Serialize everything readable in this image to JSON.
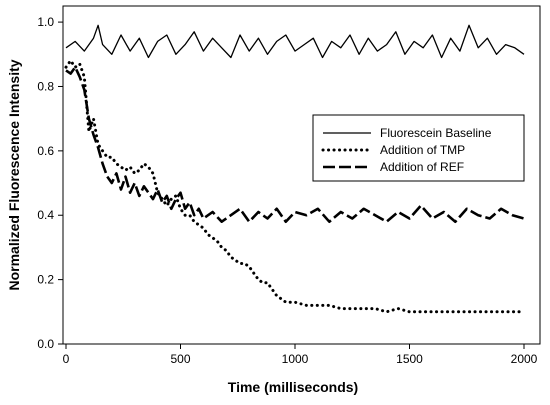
{
  "chart_data": {
    "type": "line",
    "title": "",
    "xlabel": "Time (milliseconds)",
    "ylabel": "Normalized Fluorescence Intensity",
    "xlim": [
      0,
      2000
    ],
    "ylim": [
      0,
      1.05
    ],
    "xticks": [
      0,
      500,
      1000,
      1500,
      2000
    ],
    "yticks": [
      0.0,
      0.2,
      0.4,
      0.6,
      0.8,
      1.0
    ],
    "xtick_labels": [
      "0",
      "500",
      "1000",
      "1500",
      "2000"
    ],
    "ytick_labels": [
      "0.0",
      "0.2",
      "0.4",
      "0.6",
      "0.8",
      "1.0"
    ],
    "grid": false,
    "legend_position": "center-right",
    "series": [
      {
        "name": "Fluorescein Baseline",
        "style": "solid",
        "color": "#000000",
        "x": [
          0,
          40,
          80,
          120,
          140,
          160,
          200,
          240,
          280,
          320,
          360,
          400,
          440,
          480,
          520,
          560,
          600,
          640,
          680,
          720,
          760,
          800,
          840,
          880,
          920,
          960,
          1000,
          1040,
          1080,
          1120,
          1160,
          1200,
          1240,
          1280,
          1320,
          1360,
          1400,
          1440,
          1480,
          1520,
          1560,
          1600,
          1640,
          1680,
          1720,
          1760,
          1800,
          1840,
          1880,
          1920,
          1960,
          2000
        ],
        "y": [
          0.92,
          0.94,
          0.91,
          0.95,
          0.99,
          0.93,
          0.9,
          0.96,
          0.91,
          0.95,
          0.89,
          0.94,
          0.96,
          0.9,
          0.93,
          0.97,
          0.91,
          0.95,
          0.92,
          0.89,
          0.96,
          0.91,
          0.95,
          0.9,
          0.94,
          0.96,
          0.91,
          0.93,
          0.95,
          0.89,
          0.94,
          0.92,
          0.96,
          0.9,
          0.95,
          0.91,
          0.93,
          0.97,
          0.9,
          0.94,
          0.92,
          0.96,
          0.89,
          0.95,
          0.91,
          0.99,
          0.92,
          0.95,
          0.9,
          0.93,
          0.92,
          0.9
        ]
      },
      {
        "name": "Addition of TMP",
        "style": "dotted",
        "color": "#000000",
        "x": [
          0,
          20,
          40,
          60,
          80,
          100,
          120,
          140,
          160,
          180,
          200,
          220,
          240,
          260,
          280,
          300,
          320,
          340,
          360,
          380,
          400,
          420,
          440,
          460,
          480,
          500,
          520,
          540,
          560,
          580,
          600,
          620,
          640,
          660,
          680,
          700,
          720,
          740,
          760,
          780,
          800,
          820,
          840,
          860,
          880,
          900,
          920,
          940,
          960,
          980,
          1000,
          1050,
          1100,
          1150,
          1200,
          1250,
          1300,
          1350,
          1400,
          1450,
          1500,
          1550,
          1600,
          1650,
          1700,
          1750,
          1800,
          1850,
          1900,
          1950,
          2000
        ],
        "y": [
          0.86,
          0.88,
          0.86,
          0.87,
          0.83,
          0.66,
          0.7,
          0.62,
          0.6,
          0.58,
          0.58,
          0.56,
          0.55,
          0.54,
          0.55,
          0.53,
          0.54,
          0.56,
          0.55,
          0.53,
          0.47,
          0.45,
          0.43,
          0.45,
          0.46,
          0.42,
          0.4,
          0.4,
          0.38,
          0.37,
          0.36,
          0.34,
          0.33,
          0.32,
          0.3,
          0.29,
          0.27,
          0.26,
          0.25,
          0.25,
          0.24,
          0.22,
          0.2,
          0.19,
          0.19,
          0.17,
          0.15,
          0.14,
          0.13,
          0.13,
          0.13,
          0.12,
          0.12,
          0.12,
          0.11,
          0.11,
          0.11,
          0.11,
          0.1,
          0.11,
          0.1,
          0.1,
          0.1,
          0.1,
          0.1,
          0.1,
          0.1,
          0.1,
          0.1,
          0.1,
          0.1
        ]
      },
      {
        "name": "Addition of REF",
        "style": "dashed",
        "color": "#000000",
        "x": [
          0,
          20,
          40,
          60,
          80,
          100,
          120,
          140,
          160,
          180,
          200,
          220,
          240,
          260,
          280,
          300,
          320,
          340,
          360,
          380,
          400,
          420,
          440,
          460,
          480,
          500,
          520,
          540,
          560,
          580,
          600,
          640,
          680,
          720,
          760,
          800,
          840,
          880,
          920,
          960,
          1000,
          1050,
          1100,
          1150,
          1200,
          1250,
          1300,
          1350,
          1400,
          1450,
          1500,
          1550,
          1600,
          1650,
          1700,
          1750,
          1800,
          1850,
          1900,
          1950,
          2000
        ],
        "y": [
          0.85,
          0.84,
          0.86,
          0.83,
          0.79,
          0.7,
          0.65,
          0.61,
          0.56,
          0.52,
          0.5,
          0.53,
          0.48,
          0.52,
          0.47,
          0.5,
          0.46,
          0.49,
          0.47,
          0.45,
          0.48,
          0.44,
          0.46,
          0.42,
          0.45,
          0.47,
          0.42,
          0.44,
          0.4,
          0.42,
          0.39,
          0.41,
          0.38,
          0.4,
          0.42,
          0.38,
          0.41,
          0.39,
          0.42,
          0.38,
          0.41,
          0.4,
          0.42,
          0.38,
          0.41,
          0.39,
          0.42,
          0.4,
          0.38,
          0.41,
          0.39,
          0.43,
          0.39,
          0.41,
          0.38,
          0.42,
          0.4,
          0.39,
          0.42,
          0.4,
          0.39
        ]
      }
    ]
  }
}
